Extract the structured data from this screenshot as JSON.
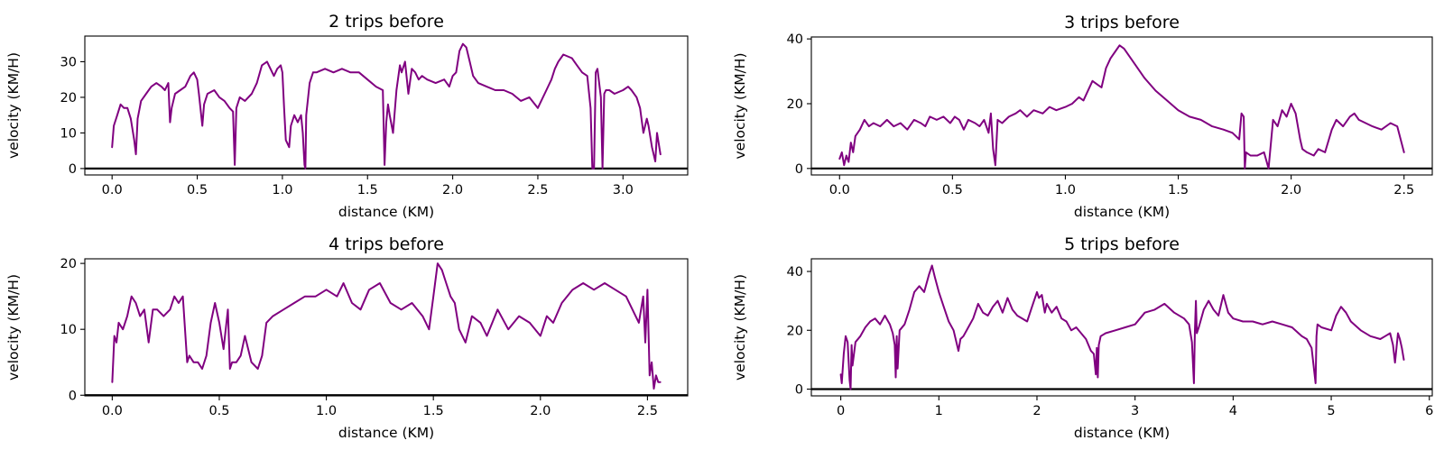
{
  "figure": {
    "line_color": "#800080",
    "axis_color": "#000000",
    "background": "#ffffff"
  },
  "chart_data": [
    {
      "type": "line",
      "title": "2 trips before",
      "xlabel": "distance (KM)",
      "ylabel": "velocity (KM/H)",
      "xlim": [
        -0.16,
        3.38
      ],
      "ylim": [
        -1.8,
        37.2
      ],
      "xticks": [
        0.0,
        0.5,
        1.0,
        1.5,
        2.0,
        2.5,
        3.0
      ],
      "xtick_labels": [
        "0.0",
        "0.5",
        "1.0",
        "1.5",
        "2.0",
        "2.5",
        "3.0"
      ],
      "yticks": [
        0,
        10,
        20,
        30
      ],
      "ytick_labels": [
        "0",
        "10",
        "20",
        "30"
      ],
      "grid": false,
      "hline": 0,
      "series": [
        {
          "x": [
            0.0,
            0.01,
            0.03,
            0.05,
            0.07,
            0.09,
            0.11,
            0.13,
            0.14,
            0.15,
            0.17,
            0.2,
            0.23,
            0.26,
            0.29,
            0.31,
            0.33,
            0.34,
            0.35,
            0.37,
            0.4,
            0.43,
            0.46,
            0.48,
            0.5,
            0.51,
            0.53,
            0.54,
            0.56,
            0.6,
            0.63,
            0.66,
            0.69,
            0.71,
            0.72,
            0.73,
            0.75,
            0.78,
            0.82,
            0.85,
            0.88,
            0.91,
            0.93,
            0.95,
            0.97,
            0.99,
            1.0,
            1.01,
            1.02,
            1.04,
            1.05,
            1.07,
            1.09,
            1.11,
            1.12,
            1.13,
            1.135,
            1.14,
            1.16,
            1.18,
            1.2,
            1.25,
            1.3,
            1.35,
            1.4,
            1.45,
            1.5,
            1.55,
            1.59,
            1.6,
            1.61,
            1.62,
            1.63,
            1.65,
            1.67,
            1.69,
            1.7,
            1.72,
            1.74,
            1.76,
            1.78,
            1.8,
            1.82,
            1.85,
            1.9,
            1.95,
            1.98,
            2.0,
            2.02,
            2.04,
            2.06,
            2.08,
            2.1,
            2.12,
            2.15,
            2.2,
            2.25,
            2.3,
            2.35,
            2.4,
            2.45,
            2.5,
            2.55,
            2.58,
            2.6,
            2.62,
            2.65,
            2.7,
            2.73,
            2.76,
            2.79,
            2.81,
            2.82,
            2.83,
            2.84,
            2.85,
            2.87,
            2.88,
            2.89,
            2.9,
            2.92,
            2.95,
            3.0,
            3.03,
            3.05,
            3.08,
            3.1,
            3.12,
            3.14,
            3.15,
            3.17,
            3.19,
            3.2,
            3.22
          ],
          "values": [
            6,
            12,
            15,
            18,
            17,
            17,
            14,
            8,
            4,
            14,
            19,
            21,
            23,
            24,
            23,
            22,
            24,
            13,
            17,
            21,
            22,
            23,
            26,
            27,
            25,
            21,
            12,
            18,
            21,
            22,
            20,
            19,
            17,
            16,
            1,
            17,
            20,
            19,
            21,
            24,
            29,
            30,
            28,
            26,
            28,
            29,
            27,
            17,
            8,
            6,
            12,
            15,
            13,
            15,
            10,
            1,
            0,
            15,
            24,
            27,
            27,
            28,
            27,
            28,
            27,
            27,
            25,
            23,
            22,
            1,
            13,
            18,
            15,
            10,
            22,
            29,
            27,
            30,
            21,
            28,
            27,
            25,
            26,
            25,
            24,
            25,
            23,
            26,
            27,
            33,
            35,
            34,
            30,
            26,
            24,
            23,
            22,
            22,
            21,
            19,
            20,
            17,
            22,
            25,
            28,
            30,
            32,
            31,
            29,
            27,
            26,
            17,
            0,
            0,
            27,
            28,
            20,
            0,
            21,
            22,
            22,
            21,
            22,
            23,
            22,
            20,
            17,
            10,
            14,
            12,
            6,
            2,
            10,
            4
          ]
        }
      ]
    },
    {
      "type": "line",
      "title": "3 trips before",
      "xlabel": "distance (KM)",
      "ylabel": "velocity (KM/H)",
      "xlim": [
        -0.125,
        2.625
      ],
      "ylim": [
        -2,
        40.6
      ],
      "xticks": [
        0.0,
        0.5,
        1.0,
        1.5,
        2.0,
        2.5
      ],
      "xtick_labels": [
        "0.0",
        "0.5",
        "1.0",
        "1.5",
        "2.0",
        "2.5"
      ],
      "yticks": [
        0,
        20,
        40
      ],
      "ytick_labels": [
        "0",
        "20",
        "40"
      ],
      "grid": false,
      "hline": 0,
      "series": [
        {
          "x": [
            0.0,
            0.01,
            0.02,
            0.03,
            0.04,
            0.05,
            0.06,
            0.07,
            0.09,
            0.11,
            0.13,
            0.15,
            0.18,
            0.21,
            0.24,
            0.27,
            0.3,
            0.33,
            0.36,
            0.38,
            0.4,
            0.43,
            0.46,
            0.49,
            0.51,
            0.53,
            0.55,
            0.57,
            0.6,
            0.62,
            0.64,
            0.66,
            0.67,
            0.68,
            0.69,
            0.7,
            0.72,
            0.75,
            0.78,
            0.8,
            0.83,
            0.86,
            0.9,
            0.93,
            0.96,
            1.0,
            1.03,
            1.06,
            1.08,
            1.1,
            1.12,
            1.14,
            1.16,
            1.18,
            1.2,
            1.22,
            1.24,
            1.26,
            1.3,
            1.35,
            1.4,
            1.45,
            1.5,
            1.55,
            1.6,
            1.65,
            1.7,
            1.74,
            1.77,
            1.78,
            1.79,
            1.795,
            1.8,
            1.82,
            1.85,
            1.88,
            1.9,
            1.92,
            1.94,
            1.96,
            1.98,
            2.0,
            2.02,
            2.04,
            2.05,
            2.07,
            2.1,
            2.12,
            2.15,
            2.18,
            2.2,
            2.23,
            2.26,
            2.28,
            2.3,
            2.33,
            2.36,
            2.4,
            2.44,
            2.47,
            2.5
          ],
          "values": [
            3,
            5,
            1,
            4,
            2,
            8,
            5,
            10,
            12,
            15,
            13,
            14,
            13,
            15,
            13,
            14,
            12,
            15,
            14,
            13,
            16,
            15,
            16,
            14,
            16,
            15,
            12,
            15,
            14,
            13,
            15,
            11,
            17,
            6,
            1,
            15,
            14,
            16,
            17,
            18,
            16,
            18,
            17,
            19,
            18,
            19,
            20,
            22,
            21,
            24,
            27,
            26,
            25,
            31,
            34,
            36,
            38,
            37,
            33,
            28,
            24,
            21,
            18,
            16,
            15,
            13,
            12,
            11,
            9,
            17,
            16,
            0,
            5,
            4,
            4,
            5,
            0,
            15,
            13,
            18,
            16,
            20,
            17,
            9,
            6,
            5,
            4,
            6,
            5,
            12,
            15,
            13,
            16,
            17,
            15,
            14,
            13,
            12,
            14,
            13,
            5
          ]
        }
      ]
    },
    {
      "type": "line",
      "title": "4 trips before",
      "xlabel": "distance (KM)",
      "ylabel": "velocity (KM/H)",
      "xlim": [
        -0.128,
        2.688
      ],
      "ylim": [
        -0.1,
        20.7
      ],
      "xticks": [
        0.0,
        0.5,
        1.0,
        1.5,
        2.0,
        2.5
      ],
      "xtick_labels": [
        "0.0",
        "0.5",
        "1.0",
        "1.5",
        "2.0",
        "2.5"
      ],
      "yticks": [
        0,
        10,
        20
      ],
      "ytick_labels": [
        "0",
        "10",
        "20"
      ],
      "grid": false,
      "hline": 0,
      "series": [
        {
          "x": [
            0.0,
            0.01,
            0.02,
            0.03,
            0.05,
            0.07,
            0.09,
            0.11,
            0.13,
            0.15,
            0.17,
            0.19,
            0.21,
            0.24,
            0.27,
            0.29,
            0.31,
            0.33,
            0.35,
            0.36,
            0.38,
            0.4,
            0.42,
            0.44,
            0.46,
            0.48,
            0.5,
            0.52,
            0.54,
            0.55,
            0.56,
            0.58,
            0.6,
            0.62,
            0.65,
            0.68,
            0.7,
            0.72,
            0.75,
            0.8,
            0.85,
            0.9,
            0.95,
            1.0,
            1.05,
            1.08,
            1.12,
            1.16,
            1.2,
            1.25,
            1.3,
            1.35,
            1.4,
            1.45,
            1.48,
            1.5,
            1.52,
            1.54,
            1.56,
            1.58,
            1.6,
            1.62,
            1.65,
            1.68,
            1.72,
            1.75,
            1.8,
            1.85,
            1.9,
            1.95,
            2.0,
            2.03,
            2.06,
            2.1,
            2.15,
            2.2,
            2.25,
            2.3,
            2.35,
            2.4,
            2.43,
            2.46,
            2.48,
            2.49,
            2.5,
            2.51,
            2.52,
            2.53,
            2.54,
            2.55,
            2.56
          ],
          "values": [
            2,
            9,
            8,
            11,
            10,
            12,
            15,
            14,
            12,
            13,
            8,
            13,
            13,
            12,
            13,
            15,
            14,
            15,
            5,
            6,
            5,
            5,
            4,
            6,
            11,
            14,
            11,
            7,
            13,
            4,
            5,
            5,
            6,
            9,
            5,
            4,
            6,
            11,
            12,
            13,
            14,
            15,
            15,
            16,
            15,
            17,
            14,
            13,
            16,
            17,
            14,
            13,
            14,
            12,
            10,
            15,
            20,
            19,
            17,
            15,
            14,
            10,
            8,
            12,
            11,
            9,
            13,
            10,
            12,
            11,
            9,
            12,
            11,
            14,
            16,
            17,
            16,
            17,
            16,
            15,
            13,
            11,
            15,
            8,
            16,
            3,
            5,
            1,
            3,
            2,
            2
          ]
        }
      ]
    },
    {
      "type": "line",
      "title": "5 trips before",
      "xlabel": "distance (KM)",
      "ylabel": "velocity (KM/H)",
      "xlim": [
        -0.3,
        6.03
      ],
      "ylim": [
        -2.3,
        44.3
      ],
      "xticks": [
        0,
        1,
        2,
        3,
        4,
        5,
        6
      ],
      "xtick_labels": [
        "0",
        "1",
        "2",
        "3",
        "4",
        "5",
        "6"
      ],
      "yticks": [
        0,
        20,
        40
      ],
      "ytick_labels": [
        "0",
        "20",
        "40"
      ],
      "grid": false,
      "hline": 0,
      "series": [
        {
          "x": [
            0.0,
            0.01,
            0.03,
            0.05,
            0.07,
            0.09,
            0.1,
            0.11,
            0.12,
            0.15,
            0.2,
            0.25,
            0.3,
            0.35,
            0.4,
            0.45,
            0.5,
            0.53,
            0.55,
            0.56,
            0.57,
            0.58,
            0.6,
            0.65,
            0.7,
            0.75,
            0.8,
            0.85,
            0.9,
            0.93,
            0.96,
            1.0,
            1.05,
            1.1,
            1.15,
            1.2,
            1.22,
            1.25,
            1.3,
            1.35,
            1.4,
            1.45,
            1.5,
            1.55,
            1.6,
            1.65,
            1.7,
            1.75,
            1.8,
            1.85,
            1.9,
            1.95,
            2.0,
            2.02,
            2.05,
            2.08,
            2.1,
            2.15,
            2.2,
            2.25,
            2.3,
            2.35,
            2.4,
            2.45,
            2.5,
            2.55,
            2.58,
            2.6,
            2.61,
            2.62,
            2.63,
            2.65,
            2.7,
            2.8,
            2.9,
            3.0,
            3.1,
            3.2,
            3.3,
            3.4,
            3.5,
            3.55,
            3.58,
            3.6,
            3.61,
            3.62,
            3.63,
            3.65,
            3.7,
            3.75,
            3.8,
            3.85,
            3.9,
            3.95,
            4.0,
            4.1,
            4.2,
            4.3,
            4.4,
            4.5,
            4.6,
            4.7,
            4.75,
            4.8,
            4.82,
            4.84,
            4.85,
            4.86,
            4.9,
            5.0,
            5.05,
            5.1,
            5.15,
            5.2,
            5.3,
            5.4,
            5.5,
            5.55,
            5.6,
            5.63,
            5.65,
            5.68,
            5.7,
            5.72,
            5.74
          ],
          "values": [
            5,
            2,
            12,
            18,
            16,
            3,
            0,
            15,
            8,
            16,
            18,
            21,
            23,
            24,
            22,
            25,
            22,
            19,
            15,
            4,
            18,
            7,
            20,
            22,
            27,
            33,
            35,
            33,
            39,
            42,
            38,
            33,
            28,
            23,
            20,
            13,
            17,
            18,
            21,
            24,
            29,
            26,
            25,
            28,
            30,
            26,
            31,
            27,
            25,
            24,
            23,
            28,
            33,
            31,
            32,
            26,
            29,
            26,
            28,
            24,
            23,
            20,
            21,
            19,
            17,
            13,
            12,
            5,
            14,
            4,
            15,
            18,
            19,
            20,
            21,
            22,
            26,
            27,
            29,
            26,
            24,
            22,
            16,
            2,
            20,
            30,
            19,
            21,
            27,
            30,
            27,
            25,
            32,
            26,
            24,
            23,
            23,
            22,
            23,
            22,
            21,
            18,
            17,
            14,
            8,
            2,
            18,
            22,
            21,
            20,
            25,
            28,
            26,
            23,
            20,
            18,
            17,
            18,
            19,
            15,
            9,
            19,
            17,
            14,
            10
          ]
        }
      ]
    }
  ]
}
